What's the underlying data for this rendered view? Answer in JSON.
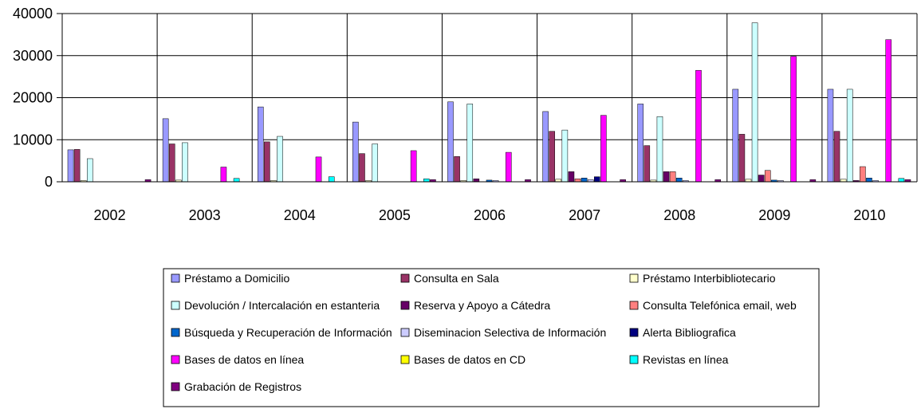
{
  "chart_data": {
    "type": "bar",
    "categories": [
      "2002",
      "2003",
      "2004",
      "2005",
      "2006",
      "2007",
      "2008",
      "2009",
      "2010"
    ],
    "ylim": [
      0,
      40000
    ],
    "yticks": [
      0,
      10000,
      20000,
      30000,
      40000
    ],
    "ytick_labels": [
      "0",
      "10000",
      "20000",
      "30000",
      "40000"
    ],
    "grid": true,
    "legend_position": "bottom",
    "series": [
      {
        "name": "Préstamo a Domicilio",
        "color": "#9999FF",
        "values": [
          7600,
          15000,
          17800,
          14200,
          19000,
          16700,
          18500,
          22000,
          22000
        ]
      },
      {
        "name": "Consulta   en Sala",
        "color": "#993366",
        "values": [
          7700,
          9000,
          9500,
          6700,
          6000,
          12000,
          8600,
          11300,
          12000
        ]
      },
      {
        "name": "Préstamo Interbibliotecario",
        "color": "#FFFFCC",
        "values": [
          300,
          400,
          300,
          300,
          300,
          600,
          400,
          600,
          600
        ]
      },
      {
        "name": "Devolución / Intercalación en estanteria",
        "color": "#CCFFFF",
        "values": [
          5500,
          9300,
          10800,
          9000,
          18500,
          12300,
          15500,
          37800,
          22000
        ]
      },
      {
        "name": "Reserva y   Apoyo a Cátedra",
        "color": "#660066",
        "values": [
          0,
          0,
          0,
          0,
          700,
          2400,
          2400,
          1600,
          300
        ]
      },
      {
        "name": "Consulta Telefónica email, web",
        "color": "#FF8080",
        "values": [
          0,
          0,
          0,
          0,
          0,
          700,
          2400,
          2700,
          3600
        ]
      },
      {
        "name": "Búsqueda y  Recuperación de Información",
        "color": "#0066CC",
        "values": [
          0,
          0,
          0,
          0,
          400,
          900,
          900,
          400,
          900
        ]
      },
      {
        "name": "Diseminacion Selectiva de Información",
        "color": "#CCCCFF",
        "values": [
          0,
          0,
          0,
          0,
          300,
          500,
          300,
          300,
          300
        ]
      },
      {
        "name": "Alerta Bibliografica",
        "color": "#000080",
        "values": [
          0,
          0,
          0,
          0,
          0,
          1200,
          0,
          0,
          0
        ]
      },
      {
        "name": "Bases de datos en línea",
        "color": "#FF00FF",
        "values": [
          0,
          3500,
          5900,
          7400,
          7000,
          15800,
          26500,
          29800,
          33800
        ]
      },
      {
        "name": "Bases de datos en CD",
        "color": "#FFFF00",
        "values": [
          0,
          0,
          0,
          0,
          0,
          0,
          0,
          0,
          0
        ]
      },
      {
        "name": "Revistas en línea",
        "color": "#00FFFF",
        "values": [
          0,
          800,
          1200,
          700,
          0,
          0,
          0,
          0,
          800
        ]
      },
      {
        "name": "Grabación de Registros",
        "color": "#800080",
        "values": [
          500,
          0,
          0,
          500,
          500,
          500,
          500,
          500,
          500
        ]
      }
    ]
  }
}
